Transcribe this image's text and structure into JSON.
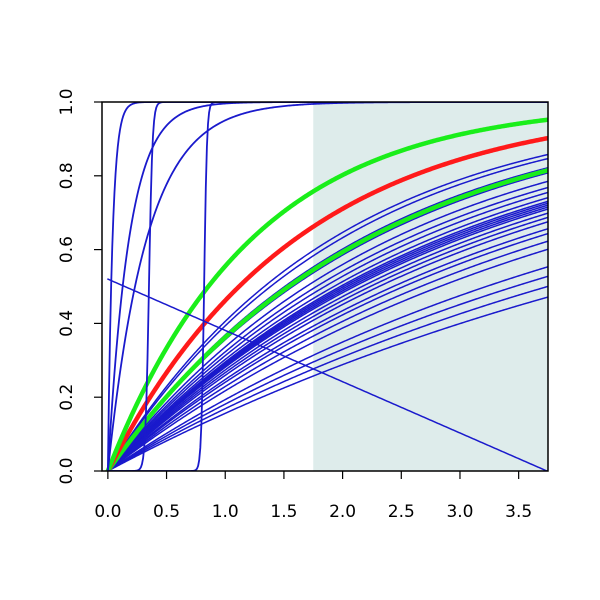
{
  "chart_data": {
    "type": "line",
    "title": "",
    "xlabel": "",
    "ylabel": "",
    "xlim": [
      -0.05,
      3.75
    ],
    "ylim": [
      0,
      1
    ],
    "grid": false,
    "legend": "none",
    "x_ticks": [
      "0.0",
      "0.5",
      "1.0",
      "1.5",
      "2.0",
      "2.5",
      "3.0",
      "3.5"
    ],
    "y_ticks": [
      "0.0",
      "0.2",
      "0.4",
      "0.6",
      "0.8",
      "1.0"
    ],
    "shaded_region": {
      "x_from": 1.75,
      "x_to": 3.75,
      "color": "#deeceb"
    },
    "colors": {
      "blue": "#1a1acc",
      "red": "#ff1a1a",
      "green": "#1aee1a",
      "shade": "#deeceb",
      "frame": "#000000"
    },
    "series": [
      {
        "color": "blue",
        "kind": "exp",
        "k": 0.17,
        "lw": 1.5
      },
      {
        "color": "blue",
        "kind": "exp",
        "k": 0.185,
        "lw": 1.5
      },
      {
        "color": "blue",
        "kind": "exp",
        "k": 0.2,
        "lw": 1.5
      },
      {
        "color": "blue",
        "kind": "exp",
        "k": 0.215,
        "lw": 1.5
      },
      {
        "color": "blue",
        "kind": "exp",
        "k": 0.245,
        "lw": 1.5
      },
      {
        "color": "blue",
        "kind": "exp",
        "k": 0.26,
        "lw": 1.5
      },
      {
        "color": "blue",
        "kind": "exp",
        "k": 0.275,
        "lw": 1.5
      },
      {
        "color": "blue",
        "kind": "exp",
        "k": 0.285,
        "lw": 1.5
      },
      {
        "color": "blue",
        "kind": "exp",
        "k": 0.3,
        "lw": 1.5
      },
      {
        "color": "blue",
        "kind": "exp",
        "k": 0.31,
        "lw": 1.5
      },
      {
        "color": "blue",
        "kind": "exp",
        "k": 0.32,
        "lw": 1.5
      },
      {
        "color": "blue",
        "kind": "exp",
        "k": 0.33,
        "lw": 1.5
      },
      {
        "color": "blue",
        "kind": "exp",
        "k": 0.335,
        "lw": 1.5
      },
      {
        "color": "blue",
        "kind": "exp",
        "k": 0.34,
        "lw": 1.5
      },
      {
        "color": "blue",
        "kind": "exp",
        "k": 0.345,
        "lw": 1.5
      },
      {
        "color": "blue",
        "kind": "exp",
        "k": 0.35,
        "lw": 1.5
      },
      {
        "color": "blue",
        "kind": "exp",
        "k": 0.36,
        "lw": 1.5
      },
      {
        "color": "blue",
        "kind": "exp",
        "k": 0.375,
        "lw": 1.5
      },
      {
        "color": "blue",
        "kind": "exp",
        "k": 0.39,
        "lw": 1.5
      },
      {
        "color": "blue",
        "kind": "exp",
        "k": 0.41,
        "lw": 1.5
      },
      {
        "color": "blue",
        "kind": "exp",
        "k": 0.44,
        "lw": 1.5
      },
      {
        "color": "blue",
        "kind": "exp",
        "k": 0.46,
        "lw": 1.5
      },
      {
        "color": "blue",
        "kind": "exp",
        "k": 0.5,
        "lw": 1.5
      },
      {
        "color": "blue",
        "kind": "exp",
        "k": 0.52,
        "lw": 1.5
      },
      {
        "color": "green",
        "kind": "exp",
        "k": 0.45,
        "lw": 4.5
      },
      {
        "color": "red",
        "kind": "exp",
        "k": 0.62,
        "lw": 4.5
      },
      {
        "color": "green",
        "kind": "exp",
        "k": 0.81,
        "lw": 4.5
      },
      {
        "color": "blue",
        "kind": "exp",
        "k": 3.0,
        "lw": 1.8
      },
      {
        "color": "blue",
        "kind": "exp",
        "k": 5.5,
        "lw": 1.8
      },
      {
        "color": "blue",
        "kind": "exp",
        "k": 25.0,
        "lw": 1.8
      },
      {
        "color": "blue",
        "kind": "sigmoid",
        "x0": 0.35,
        "s": 0.015,
        "lw": 1.8
      },
      {
        "color": "blue",
        "kind": "sigmoid",
        "x0": 0.82,
        "s": 0.012,
        "lw": 1.8
      },
      {
        "color": "blue",
        "kind": "linear",
        "a": 0.52,
        "b": -0.139,
        "lw": 1.5
      }
    ]
  }
}
